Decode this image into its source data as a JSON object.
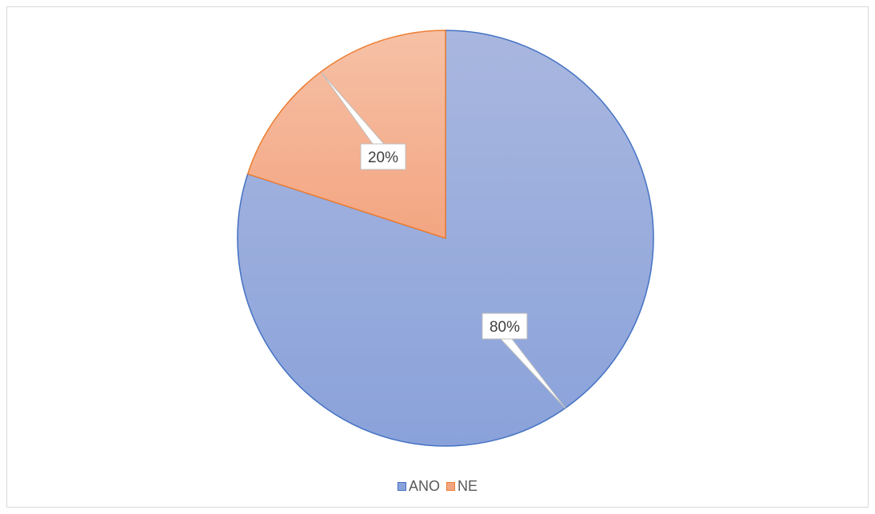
{
  "chart_data": {
    "type": "pie",
    "categories": [
      "ANO",
      "NE"
    ],
    "values": [
      80,
      20
    ],
    "data_labels": [
      "80%",
      "20%"
    ],
    "legend": "bottom",
    "colors": {
      "ANO": {
        "fill_top": "#a9b7df",
        "fill_bottom": "#8aa2da",
        "stroke": "#4472c4"
      },
      "NE": {
        "fill_top": "#f6c1a6",
        "fill_bottom": "#f3a581",
        "stroke": "#ed7d31"
      }
    }
  }
}
